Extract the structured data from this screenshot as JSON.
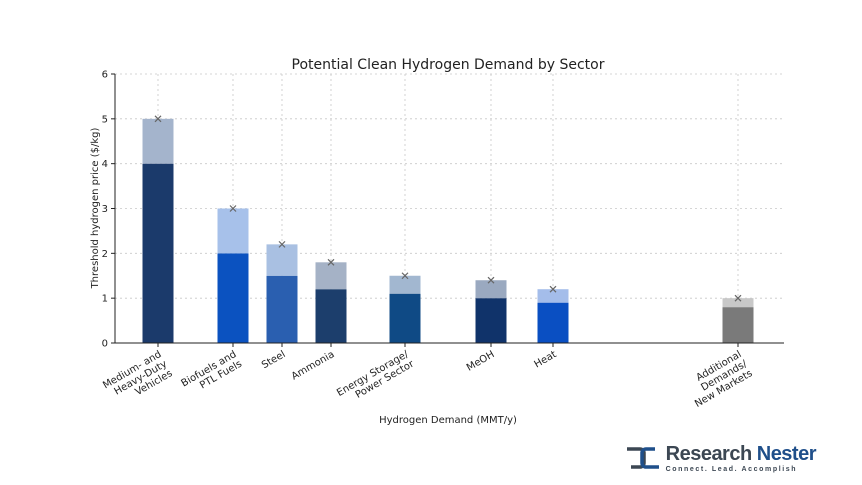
{
  "chart_data": {
    "type": "bar",
    "title": "Potential Clean Hydrogen Demand by Sector",
    "xlabel": "Hydrogen Demand (MMT/y)",
    "ylabel": "Threshold hydrogen price ($/kg)",
    "ylim": [
      0,
      6
    ],
    "yticks": [
      "0",
      "1",
      "2",
      "3",
      "4",
      "5",
      "6"
    ],
    "grid": true,
    "categories": [
      {
        "label_lines": [
          "Medium- and",
          "Heavy-Duty",
          "Vehicles"
        ],
        "lower": 4.0,
        "upper": 5.0,
        "marker": 5.0,
        "color_lower": "#1b3a6b",
        "color_upper": "#a4b4cc"
      },
      {
        "label_lines": [
          "Biofuels and",
          "PTL Fuels"
        ],
        "lower": 2.0,
        "upper": 3.0,
        "marker": 3.0,
        "color_lower": "#0b52c0",
        "color_upper": "#a7c1ea"
      },
      {
        "label_lines": [
          "Steel"
        ],
        "lower": 1.5,
        "upper": 2.2,
        "marker": 2.2,
        "color_lower": "#2a5fb0",
        "color_upper": "#a9c0e2"
      },
      {
        "label_lines": [
          "Ammonia"
        ],
        "lower": 1.2,
        "upper": 1.8,
        "marker": 1.8,
        "color_lower": "#1c3e6c",
        "color_upper": "#a5b2c6"
      },
      {
        "label_lines": [
          "Energy Storage/",
          "Power Sector"
        ],
        "lower": 1.1,
        "upper": 1.5,
        "marker": 1.5,
        "color_lower": "#0f4a85",
        "color_upper": "#a2b7d0"
      },
      {
        "label_lines": [
          "MeOH"
        ],
        "lower": 1.0,
        "upper": 1.4,
        "marker": 1.4,
        "color_lower": "#10336a",
        "color_upper": "#9aa9c0"
      },
      {
        "label_lines": [
          "Heat"
        ],
        "lower": 0.9,
        "upper": 1.2,
        "marker": 1.2,
        "color_lower": "#0a4fc2",
        "color_upper": "#a4bdea"
      },
      {
        "label_lines": [
          "Additional",
          "Demands/",
          "New Markets"
        ],
        "lower": 0.8,
        "upper": 1.0,
        "marker": 1.0,
        "color_lower": "#7a7a7a",
        "color_upper": "#c8c8c8"
      }
    ]
  },
  "brand": {
    "name_part1": "Research",
    "name_part2": " Nester",
    "tagline": "Connect. Lead. Accomplish",
    "logo_icon": "research-nester-logo-icon",
    "colors": {
      "dark": "#3c4753",
      "accent": "#1f4f8a"
    }
  }
}
